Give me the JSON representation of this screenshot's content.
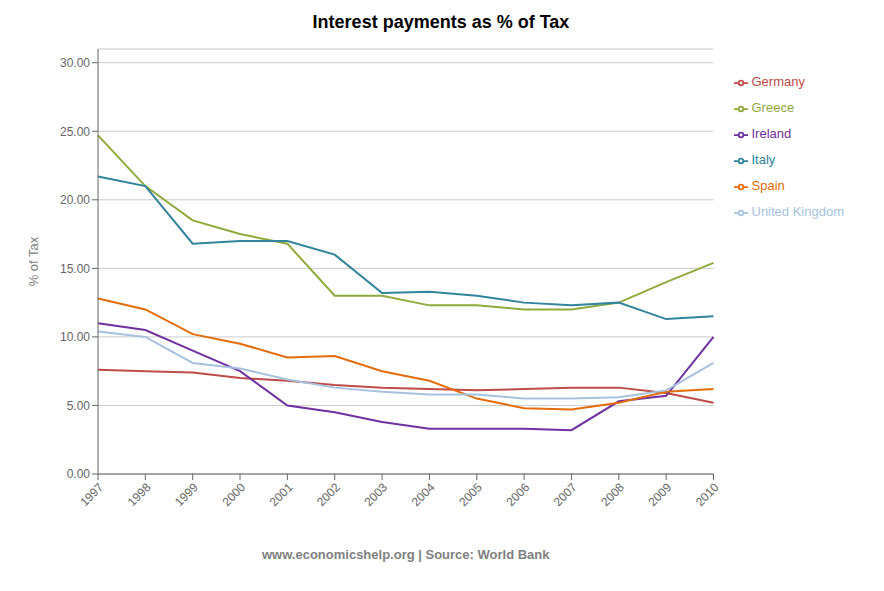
{
  "chart_data": {
    "type": "line",
    "title": "Interest payments as % of Tax",
    "xlabel": "www.economicshelp.org | Source: World Bank",
    "ylabel": "% of Tax",
    "categories": [
      1997,
      1998,
      1999,
      2000,
      2001,
      2002,
      2003,
      2004,
      2005,
      2006,
      2007,
      2008,
      2009,
      2010
    ],
    "series": [
      {
        "name": "Germany",
        "color": "#be4b48",
        "values": [
          7.6,
          7.5,
          7.4,
          7.0,
          6.8,
          6.5,
          6.3,
          6.2,
          6.1,
          6.2,
          6.3,
          6.3,
          5.9,
          5.2
        ]
      },
      {
        "name": "Greece",
        "color": "#8faa3c",
        "values": [
          24.7,
          21.0,
          18.5,
          17.5,
          16.8,
          13.0,
          13.0,
          12.3,
          12.3,
          12.0,
          12.0,
          12.5,
          14.0,
          15.4
        ]
      },
      {
        "name": "Ireland",
        "color": "#7030a0",
        "values": [
          11.0,
          10.5,
          9.0,
          7.5,
          5.0,
          4.5,
          3.8,
          3.3,
          3.3,
          3.3,
          3.2,
          5.3,
          5.7,
          10.0
        ]
      },
      {
        "name": "Italy",
        "color": "#31849b",
        "values": [
          21.7,
          21.0,
          16.8,
          17.0,
          17.0,
          16.0,
          13.2,
          13.3,
          13.0,
          12.5,
          12.3,
          12.5,
          11.3,
          11.5
        ]
      },
      {
        "name": "Spain",
        "color": "#e46c0a",
        "values": [
          12.8,
          12.0,
          10.2,
          9.5,
          8.5,
          8.6,
          7.5,
          6.8,
          5.5,
          4.8,
          4.7,
          5.2,
          6.0,
          6.2
        ]
      },
      {
        "name": "United Kingdom",
        "color": "#a6c2e0",
        "values": [
          10.4,
          10.0,
          8.1,
          7.7,
          6.9,
          6.3,
          6.0,
          5.8,
          5.8,
          5.5,
          5.5,
          5.6,
          6.1,
          8.1
        ]
      }
    ],
    "ylim": [
      0,
      31
    ],
    "yticks": [
      {
        "value": 0.0,
        "label": "0.00"
      },
      {
        "value": 5.0,
        "label": "5.00"
      },
      {
        "value": 10.0,
        "label": "10.00"
      },
      {
        "value": 15.0,
        "label": "15.00"
      },
      {
        "value": 20.0,
        "label": "20.00"
      },
      {
        "value": 25.0,
        "label": "25.00"
      },
      {
        "value": 30.0,
        "label": "30.00"
      }
    ],
    "grid": true,
    "legend": "right"
  }
}
